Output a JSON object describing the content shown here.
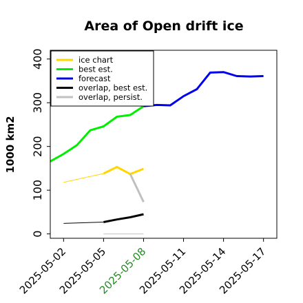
{
  "chart_data": {
    "type": "line",
    "title": "Area of Open drift ice",
    "ylabel": "1000 km2",
    "xlabel": "",
    "ylim": [
      -10,
      420
    ],
    "xlim": [
      "2025-05-01",
      "2025-05-18"
    ],
    "yticks": [
      0,
      100,
      200,
      300,
      400
    ],
    "xticks": [
      "2025-05-02",
      "2025-05-05",
      "2025-05-08",
      "2025-05-11",
      "2025-05-14",
      "2025-05-17"
    ],
    "xtick_colors": [
      "#000000",
      "#000000",
      "#228b22",
      "#000000",
      "#000000",
      "#000000"
    ],
    "legend_position": "upper-left",
    "series": [
      {
        "name": "ice chart",
        "color": "#ffd700",
        "segments": [
          {
            "width": 1,
            "points": [
              [
                "2025-05-02",
                118
              ],
              [
                "2025-05-05",
                138
              ]
            ]
          },
          {
            "width": 3,
            "points": [
              [
                "2025-05-05",
                138
              ],
              [
                "2025-05-06",
                153
              ],
              [
                "2025-05-07",
                137
              ],
              [
                "2025-05-08",
                149
              ]
            ]
          }
        ]
      },
      {
        "name": "best est.",
        "color": "#00ee00",
        "segments": [
          {
            "width": 3,
            "points": [
              [
                "2025-05-01",
                166
              ],
              [
                "2025-05-02",
                183
              ],
              [
                "2025-05-03",
                203
              ],
              [
                "2025-05-04",
                237
              ],
              [
                "2025-05-05",
                246
              ],
              [
                "2025-05-06",
                268
              ],
              [
                "2025-05-07",
                272
              ],
              [
                "2025-05-08",
                292
              ]
            ]
          }
        ]
      },
      {
        "name": "forecast",
        "color": "#0000ee",
        "segments": [
          {
            "width": 3,
            "points": [
              [
                "2025-05-08",
                292
              ],
              [
                "2025-05-09",
                295
              ],
              [
                "2025-05-10",
                294
              ],
              [
                "2025-05-11",
                315
              ],
              [
                "2025-05-12",
                331
              ],
              [
                "2025-05-13",
                369
              ],
              [
                "2025-05-14",
                370
              ],
              [
                "2025-05-15",
                361
              ],
              [
                "2025-05-16",
                360
              ],
              [
                "2025-05-17",
                361
              ]
            ]
          }
        ]
      },
      {
        "name": "overlap, best est.",
        "color": "#000000",
        "segments": [
          {
            "width": 1,
            "points": [
              [
                "2025-05-02",
                24
              ],
              [
                "2025-05-05",
                27
              ]
            ]
          },
          {
            "width": 3,
            "points": [
              [
                "2025-05-05",
                27
              ],
              [
                "2025-05-06",
                33
              ],
              [
                "2025-05-07",
                38
              ],
              [
                "2025-05-08",
                45
              ]
            ]
          }
        ]
      },
      {
        "name": "overlap, persist.",
        "color": "#c0c0c0",
        "segments": [
          {
            "width": 1,
            "points": [
              [
                "2025-05-05",
                0
              ],
              [
                "2025-05-08",
                0
              ]
            ]
          },
          {
            "width": 3,
            "points": [
              [
                "2025-05-07",
                137
              ],
              [
                "2025-05-08",
                73
              ]
            ]
          }
        ]
      }
    ]
  }
}
